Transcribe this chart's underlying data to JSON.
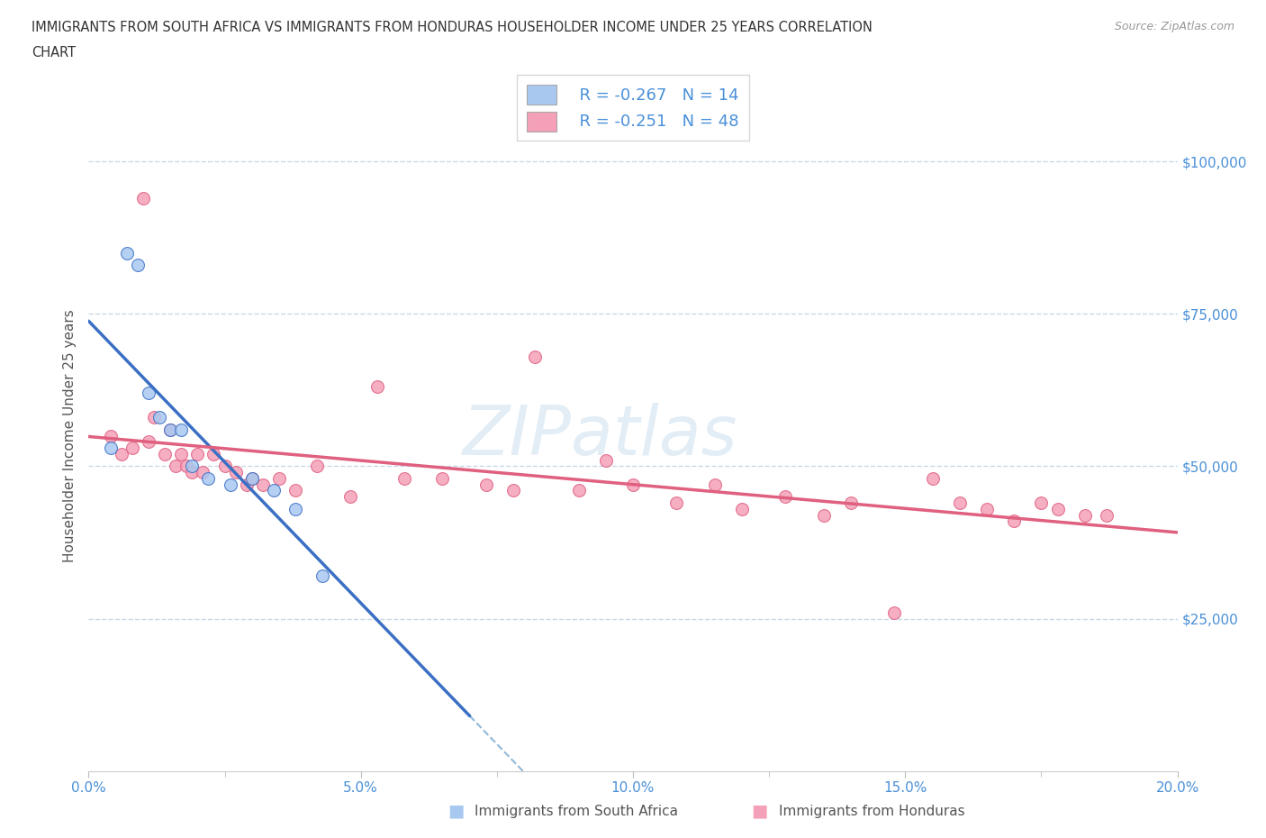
{
  "title_line1": "IMMIGRANTS FROM SOUTH AFRICA VS IMMIGRANTS FROM HONDURAS HOUSEHOLDER INCOME UNDER 25 YEARS CORRELATION",
  "title_line2": "CHART",
  "source_text": "Source: ZipAtlas.com",
  "ylabel": "Householder Income Under 25 years",
  "legend_label1": "Immigrants from South Africa",
  "legend_label2": "Immigrants from Honduras",
  "legend_R1": "R = -0.267",
  "legend_N1": "N = 14",
  "legend_R2": "R = -0.251",
  "legend_N2": "N = 48",
  "color_sa": "#A8C8F0",
  "color_hn": "#F4A0B8",
  "color_sa_line": "#3A6FC4",
  "color_hn_line": "#E06080",
  "color_dashed": "#90B8D8",
  "watermark": "ZIPatlas",
  "xlim": [
    0.0,
    0.2
  ],
  "ylim": [
    0,
    110000
  ],
  "xtick_labels": [
    "0.0%",
    "",
    "5.0%",
    "",
    "10.0%",
    "",
    "15.0%",
    "",
    "20.0%"
  ],
  "xtick_vals": [
    0.0,
    0.025,
    0.05,
    0.075,
    0.1,
    0.125,
    0.15,
    0.175,
    0.2
  ],
  "xtick_major_labels": [
    "0.0%",
    "5.0%",
    "10.0%",
    "15.0%",
    "20.0%"
  ],
  "xtick_major_vals": [
    0.0,
    0.05,
    0.1,
    0.15,
    0.2
  ],
  "ytick_labels": [
    "$25,000",
    "$50,000",
    "$75,000",
    "$100,000"
  ],
  "ytick_vals": [
    25000,
    50000,
    75000,
    100000
  ],
  "sa_x": [
    0.004,
    0.007,
    0.009,
    0.011,
    0.013,
    0.015,
    0.017,
    0.019,
    0.022,
    0.026,
    0.03,
    0.034,
    0.038,
    0.043
  ],
  "sa_y": [
    53000,
    85000,
    83000,
    62000,
    58000,
    56000,
    56000,
    50000,
    48000,
    47000,
    48000,
    46000,
    43000,
    32000
  ],
  "hn_x": [
    0.004,
    0.006,
    0.008,
    0.01,
    0.011,
    0.012,
    0.014,
    0.015,
    0.016,
    0.017,
    0.018,
    0.019,
    0.02,
    0.021,
    0.023,
    0.025,
    0.027,
    0.029,
    0.03,
    0.032,
    0.035,
    0.038,
    0.042,
    0.048,
    0.053,
    0.058,
    0.065,
    0.073,
    0.078,
    0.082,
    0.09,
    0.095,
    0.1,
    0.108,
    0.115,
    0.12,
    0.128,
    0.135,
    0.14,
    0.148,
    0.155,
    0.16,
    0.165,
    0.17,
    0.175,
    0.178,
    0.183,
    0.187
  ],
  "hn_y": [
    55000,
    52000,
    53000,
    94000,
    54000,
    58000,
    52000,
    56000,
    50000,
    52000,
    50000,
    49000,
    52000,
    49000,
    52000,
    50000,
    49000,
    47000,
    48000,
    47000,
    48000,
    46000,
    50000,
    45000,
    63000,
    48000,
    48000,
    47000,
    46000,
    68000,
    46000,
    51000,
    47000,
    44000,
    47000,
    43000,
    45000,
    42000,
    44000,
    26000,
    48000,
    44000,
    43000,
    41000,
    44000,
    43000,
    42000,
    42000
  ],
  "background_color": "#FFFFFF",
  "grid_color": "#C8D8E8",
  "ytick_color": "#4A90D9",
  "xtick_color": "#4A90D9"
}
